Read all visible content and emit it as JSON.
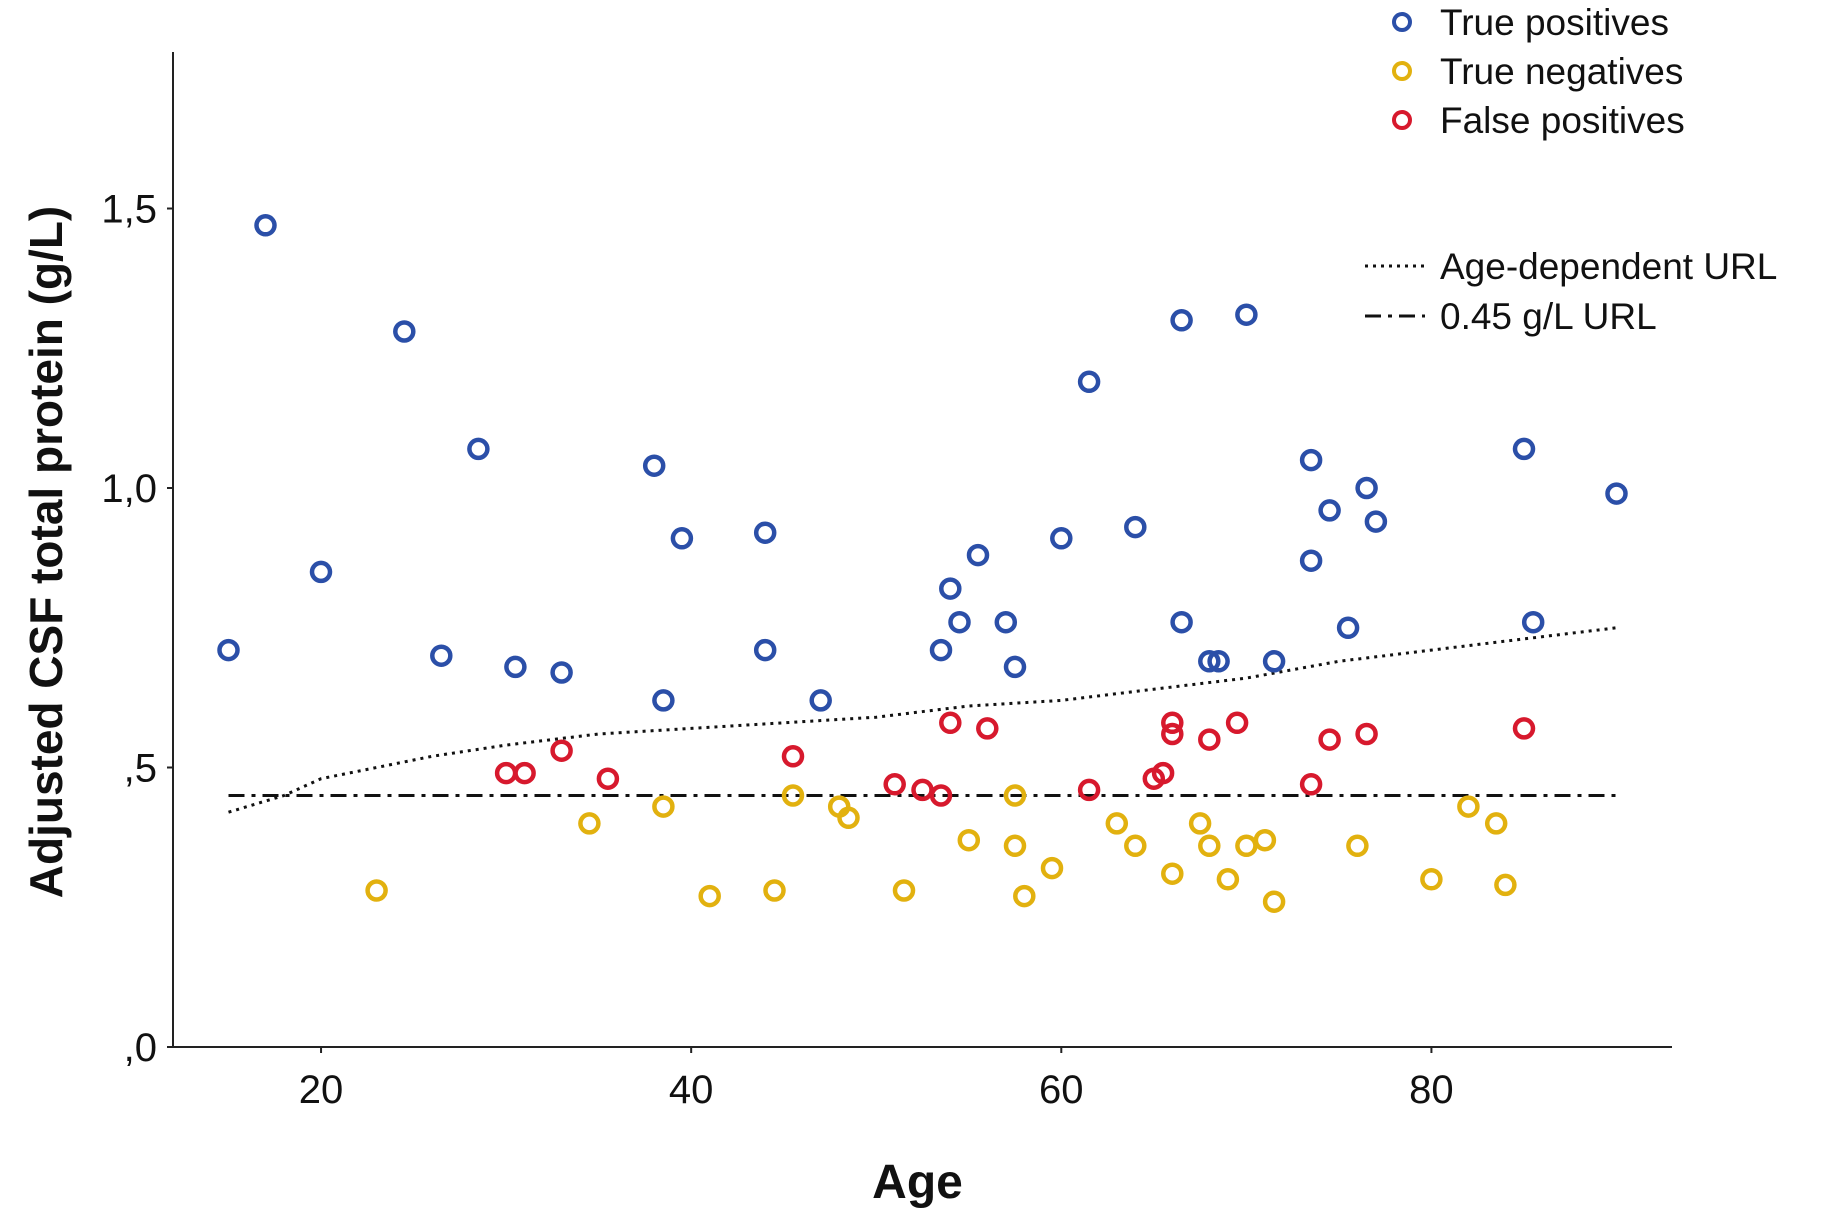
{
  "chart_data": {
    "type": "scatter",
    "title": "",
    "xlabel": "Age",
    "ylabel": "Adjusted CSF total protein (g/L)",
    "xlim": [
      12,
      93
    ],
    "ylim": [
      0,
      1.78
    ],
    "x_ticks": [
      20,
      40,
      60,
      80
    ],
    "x_tick_labels": [
      "20",
      "40",
      "60",
      "80"
    ],
    "y_ticks": [
      0,
      0.5,
      1.0,
      1.5
    ],
    "y_tick_labels": [
      ",0",
      ",5",
      "1,0",
      "1,5"
    ],
    "grid": false,
    "legend_position": "top-right",
    "series": [
      {
        "name": "True positives",
        "color": "#2b4fa8",
        "marker": "open-circle",
        "points": [
          [
            15,
            0.71
          ],
          [
            17,
            1.47
          ],
          [
            20,
            0.85
          ],
          [
            24.5,
            1.28
          ],
          [
            26.5,
            0.7
          ],
          [
            28.5,
            1.07
          ],
          [
            30.5,
            0.68
          ],
          [
            33,
            0.67
          ],
          [
            38,
            1.04
          ],
          [
            38.5,
            0.62
          ],
          [
            39.5,
            0.91
          ],
          [
            44,
            0.71
          ],
          [
            44,
            0.92
          ],
          [
            47,
            0.62
          ],
          [
            53.5,
            0.71
          ],
          [
            54,
            0.82
          ],
          [
            54.5,
            0.76
          ],
          [
            55.5,
            0.88
          ],
          [
            57,
            0.76
          ],
          [
            57.5,
            0.68
          ],
          [
            60,
            0.91
          ],
          [
            61.5,
            1.19
          ],
          [
            64,
            0.93
          ],
          [
            66.5,
            0.76
          ],
          [
            66.5,
            1.3
          ],
          [
            68,
            0.69
          ],
          [
            68.5,
            0.69
          ],
          [
            70,
            1.31
          ],
          [
            71.5,
            0.69
          ],
          [
            73.5,
            1.05
          ],
          [
            73.5,
            0.87
          ],
          [
            74.5,
            0.96
          ],
          [
            75.5,
            0.75
          ],
          [
            76.5,
            1.0
          ],
          [
            77,
            0.94
          ],
          [
            85,
            1.07
          ],
          [
            85.5,
            0.76
          ],
          [
            90,
            0.99
          ]
        ]
      },
      {
        "name": "True negatives",
        "color": "#e2b10f",
        "marker": "open-circle",
        "points": [
          [
            23,
            0.28
          ],
          [
            34.5,
            0.4
          ],
          [
            38.5,
            0.43
          ],
          [
            41,
            0.27
          ],
          [
            44.5,
            0.28
          ],
          [
            45.5,
            0.45
          ],
          [
            48,
            0.43
          ],
          [
            48.5,
            0.41
          ],
          [
            51.5,
            0.28
          ],
          [
            55,
            0.37
          ],
          [
            57.5,
            0.45
          ],
          [
            57.5,
            0.36
          ],
          [
            58,
            0.27
          ],
          [
            59.5,
            0.32
          ],
          [
            63,
            0.4
          ],
          [
            64,
            0.36
          ],
          [
            66,
            0.31
          ],
          [
            67.5,
            0.4
          ],
          [
            68,
            0.36
          ],
          [
            69,
            0.3
          ],
          [
            70,
            0.36
          ],
          [
            71,
            0.37
          ],
          [
            71.5,
            0.26
          ],
          [
            76,
            0.36
          ],
          [
            80,
            0.3
          ],
          [
            82,
            0.43
          ],
          [
            83.5,
            0.4
          ],
          [
            84,
            0.29
          ]
        ]
      },
      {
        "name": "False positives",
        "color": "#d7192d",
        "marker": "open-circle",
        "points": [
          [
            30,
            0.49
          ],
          [
            31,
            0.49
          ],
          [
            33,
            0.53
          ],
          [
            35.5,
            0.48
          ],
          [
            45.5,
            0.52
          ],
          [
            51,
            0.47
          ],
          [
            52.5,
            0.46
          ],
          [
            53.5,
            0.45
          ],
          [
            54,
            0.58
          ],
          [
            56,
            0.57
          ],
          [
            61.5,
            0.46
          ],
          [
            65,
            0.48
          ],
          [
            65.5,
            0.49
          ],
          [
            66,
            0.58
          ],
          [
            66,
            0.56
          ],
          [
            68,
            0.55
          ],
          [
            69.5,
            0.58
          ],
          [
            73.5,
            0.47
          ],
          [
            74.5,
            0.55
          ],
          [
            76.5,
            0.56
          ],
          [
            85,
            0.57
          ]
        ]
      }
    ],
    "reference_lines": [
      {
        "name": "Age-dependent URL",
        "style": "dotted",
        "color": "#111111",
        "points": [
          [
            15,
            0.42
          ],
          [
            18,
            0.45
          ],
          [
            20,
            0.48
          ],
          [
            23,
            0.5
          ],
          [
            26,
            0.52
          ],
          [
            30,
            0.54
          ],
          [
            35,
            0.56
          ],
          [
            40,
            0.57
          ],
          [
            45,
            0.58
          ],
          [
            50,
            0.59
          ],
          [
            55,
            0.61
          ],
          [
            60,
            0.62
          ],
          [
            65,
            0.64
          ],
          [
            70,
            0.66
          ],
          [
            75,
            0.69
          ],
          [
            80,
            0.71
          ],
          [
            85,
            0.73
          ],
          [
            90,
            0.75
          ]
        ]
      },
      {
        "name": "0.45 g/L URL",
        "style": "dash-dot",
        "color": "#111111",
        "points": [
          [
            15,
            0.45
          ],
          [
            90,
            0.45
          ]
        ]
      }
    ]
  }
}
